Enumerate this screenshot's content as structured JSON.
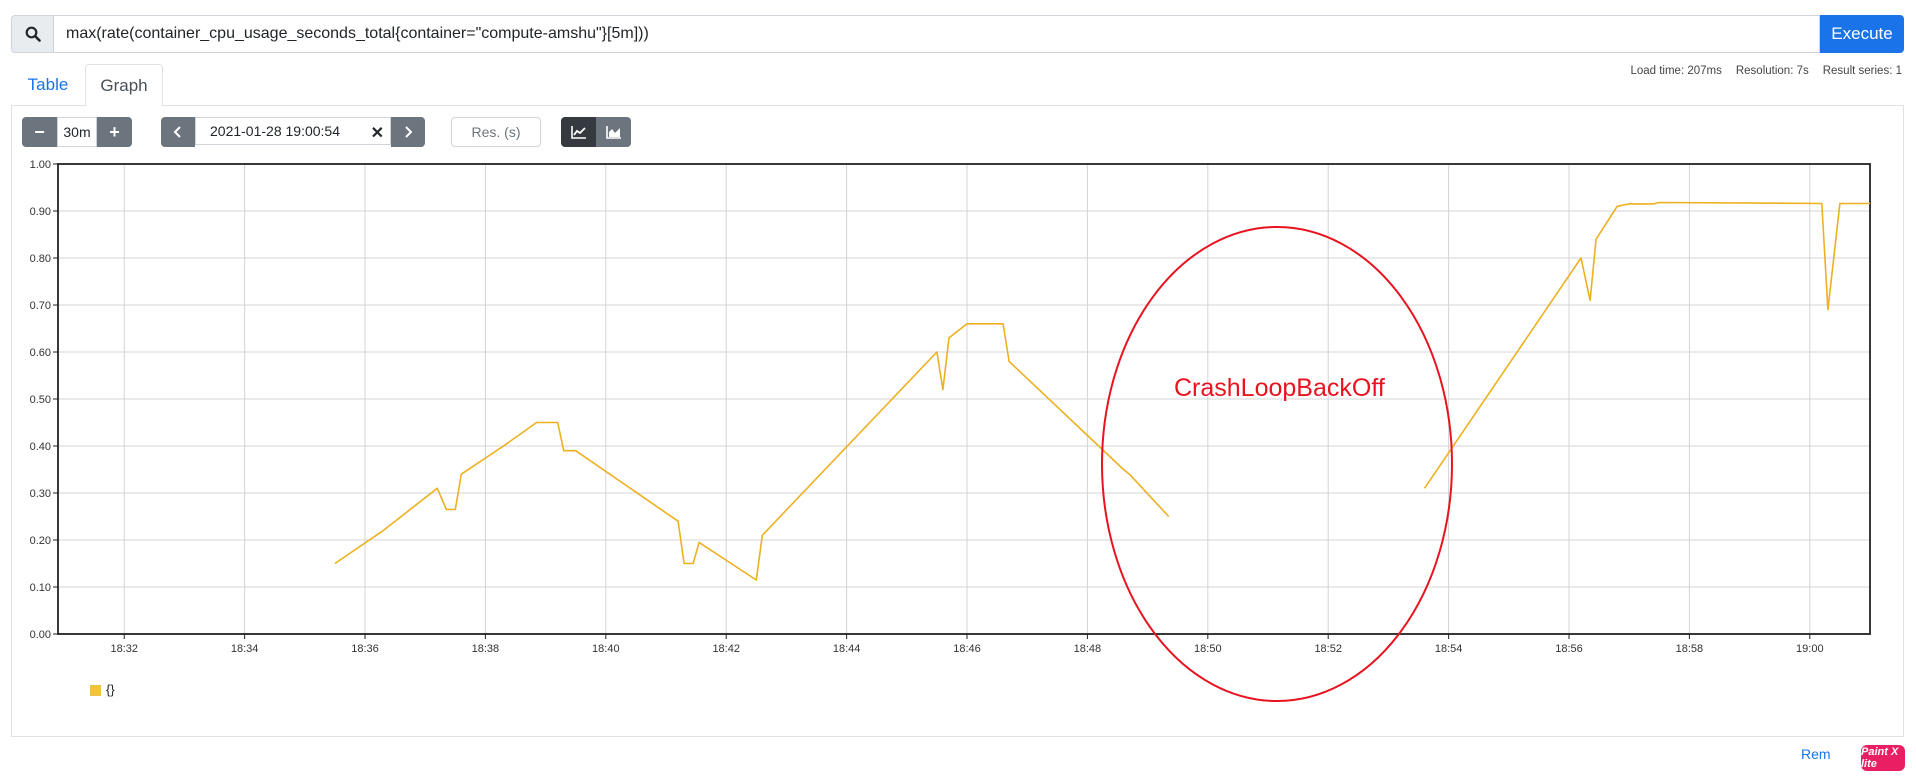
{
  "query": {
    "value": "max(rate(container_cpu_usage_seconds_total{container=\"compute-amshu\"}[5m]))",
    "search_icon": "search-icon",
    "execute_label": "Execute"
  },
  "stats": {
    "load_time": "Load time: 207ms",
    "resolution": "Resolution: 7s",
    "result_series": "Result series: 1"
  },
  "tabs": [
    {
      "label": "Table",
      "active": false
    },
    {
      "label": "Graph",
      "active": true
    }
  ],
  "controls": {
    "range_minus": "−",
    "range_value": "30m",
    "range_plus": "+",
    "end_time": "2021-01-28 19:00:54",
    "clear": "✕",
    "res_placeholder": "Res. (s)",
    "stacked_icons": [
      "line-chart-icon",
      "area-chart-icon"
    ]
  },
  "annotation": {
    "text": "CrashLoopBackOff",
    "color": "#e8131f"
  },
  "legend": {
    "label": "{}",
    "color": "#f5c431"
  },
  "footer": {
    "remove_link": "Rem",
    "badge": "Paint X lite"
  },
  "chart_data": {
    "type": "line",
    "color": "#edb021",
    "x_unit": "time HH:MM",
    "ylim": [
      0,
      1.0
    ],
    "yticks": [
      "0.00",
      "0.10",
      "0.20",
      "0.30",
      "0.40",
      "0.50",
      "0.60",
      "0.70",
      "0.80",
      "0.90",
      "1.00"
    ],
    "xticks": [
      "18:32",
      "18:34",
      "18:36",
      "18:38",
      "18:40",
      "18:42",
      "18:44",
      "18:46",
      "18:48",
      "18:50",
      "18:52",
      "18:54",
      "18:56",
      "18:58",
      "19:00"
    ],
    "xlim_minutes": [
      30.9,
      61.0
    ],
    "grid": true,
    "series": [
      {
        "segments": [
          [
            [
              35.5,
              0.15
            ],
            [
              36.3,
              0.22
            ],
            [
              37.2,
              0.31
            ],
            [
              37.35,
              0.265
            ],
            [
              37.5,
              0.265
            ],
            [
              37.6,
              0.34
            ],
            [
              38.3,
              0.4
            ],
            [
              38.85,
              0.45
            ],
            [
              39.2,
              0.45
            ],
            [
              39.3,
              0.39
            ],
            [
              39.5,
              0.39
            ],
            [
              41.2,
              0.24
            ],
            [
              41.3,
              0.15
            ],
            [
              41.45,
              0.15
            ],
            [
              41.55,
              0.195
            ],
            [
              42.5,
              0.115
            ],
            [
              42.6,
              0.21
            ],
            [
              45.5,
              0.6
            ],
            [
              45.6,
              0.52
            ],
            [
              45.7,
              0.63
            ],
            [
              46.0,
              0.66
            ],
            [
              46.6,
              0.66
            ],
            [
              46.7,
              0.58
            ],
            [
              48.6,
              0.35
            ],
            [
              48.7,
              0.34
            ],
            [
              49.35,
              0.25
            ]
          ],
          [
            [
              53.6,
              0.31
            ],
            [
              56.2,
              0.8
            ],
            [
              56.35,
              0.71
            ],
            [
              56.45,
              0.84
            ],
            [
              56.8,
              0.91
            ],
            [
              57.0,
              0.915
            ],
            [
              57.4,
              0.915
            ],
            [
              57.5,
              0.918
            ],
            [
              60.2,
              0.916
            ],
            [
              60.3,
              0.69
            ],
            [
              60.5,
              0.916
            ],
            [
              61.0,
              0.916
            ]
          ]
        ]
      }
    ]
  }
}
